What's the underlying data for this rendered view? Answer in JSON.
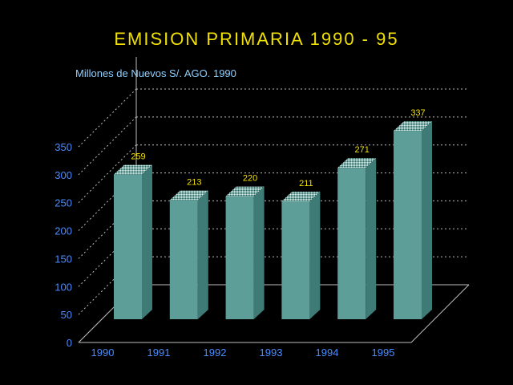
{
  "colors": {
    "background": "#000000",
    "title": "#f0e000",
    "subtitle": "#8fd0ff",
    "axis_text": "#4a8cff",
    "value_label": "#f0e000",
    "bar_front": "#5e9e98",
    "bar_side": "#3e7a76",
    "bar_top": "#9ad6cf",
    "frame": "#bdbdbd"
  },
  "chart_data": {
    "type": "bar",
    "title": "EMISION PRIMARIA 1990 - 95",
    "subtitle": "Millones de Nuevos S/. AGO. 1990",
    "categories": [
      "1990",
      "1991",
      "1992",
      "1993",
      "1994",
      "1995"
    ],
    "values": [
      259,
      213,
      220,
      211,
      271,
      337
    ],
    "ylim": [
      0,
      350
    ],
    "yticks": [
      0,
      50,
      100,
      150,
      200,
      250,
      300,
      350
    ],
    "xlabel": "",
    "ylabel": "",
    "grid": true
  }
}
